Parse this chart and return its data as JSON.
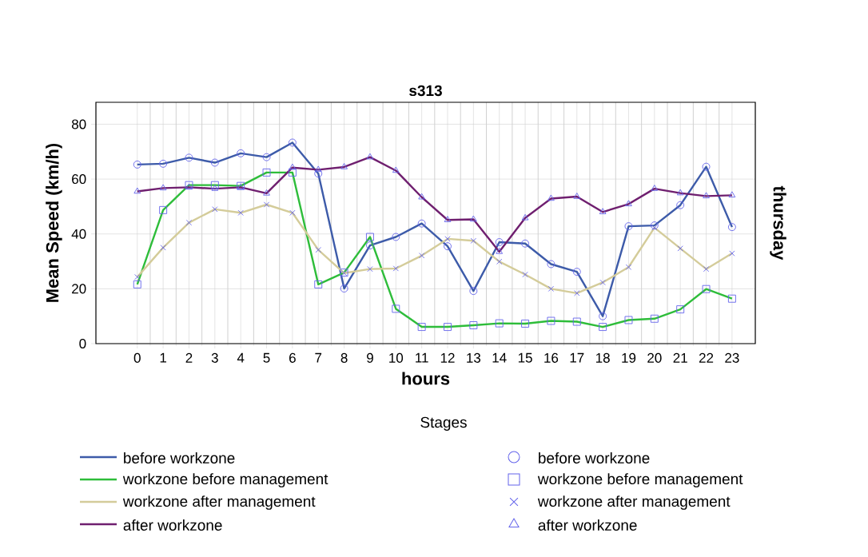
{
  "chart_data": {
    "type": "line",
    "title": "s313",
    "xlabel": "hours",
    "ylabel": "Mean Speed (km/h)",
    "legend_title": "Stages",
    "annotations": [
      "thursday"
    ],
    "categories": [
      "0",
      "1",
      "2",
      "3",
      "4",
      "5",
      "6",
      "7",
      "8",
      "9",
      "10",
      "11",
      "12",
      "13",
      "14",
      "15",
      "16",
      "17",
      "18",
      "19",
      "20",
      "21",
      "22",
      "23"
    ],
    "ylim": [
      0,
      88
    ],
    "yticks": [
      0,
      20,
      40,
      60,
      80
    ],
    "grid": true,
    "legend": "bottom",
    "line_style": "solid",
    "series": [
      {
        "name": "before workzone",
        "color": "#3d5ba9",
        "marker": "circle",
        "values": [
          65.3,
          65.6,
          67.8,
          66,
          69.4,
          68,
          73.3,
          62,
          20.1,
          35.8,
          38.9,
          43.8,
          35.5,
          19.2,
          37,
          36.5,
          29,
          26.2,
          10,
          42.8,
          43.1,
          50.5,
          64.5,
          42.5
        ]
      },
      {
        "name": "workzone before management",
        "color": "#2ebd3a",
        "marker": "square",
        "values": [
          21.6,
          48.7,
          57.8,
          57.8,
          57.5,
          62.4,
          62.4,
          21.6,
          25.9,
          38.9,
          12.7,
          6.1,
          6.1,
          6.7,
          7.4,
          7.3,
          8.3,
          8,
          6.1,
          8.6,
          9.1,
          12.5,
          19.9,
          16.4
        ]
      },
      {
        "name": "workzone after management",
        "color": "#d4cc9a",
        "marker": "cross",
        "values": [
          24.3,
          35,
          44.1,
          49,
          47.7,
          50.7,
          47.7,
          34.2,
          25.7,
          27.2,
          27.4,
          32.1,
          38.2,
          37.5,
          29.9,
          25.2,
          20,
          18.4,
          22.3,
          27.9,
          42.3,
          34.7,
          27.2,
          32.9
        ]
      },
      {
        "name": "after workzone",
        "color": "#6f1f6f",
        "marker": "triangle",
        "values": [
          55.5,
          56.7,
          57,
          56.5,
          57,
          54.8,
          64.2,
          63.4,
          64.4,
          68,
          63.1,
          53.4,
          45.1,
          45.3,
          33.5,
          45.8,
          52.9,
          53.6,
          48,
          50.9,
          56.5,
          54.9,
          53.8,
          54.1
        ]
      }
    ]
  }
}
